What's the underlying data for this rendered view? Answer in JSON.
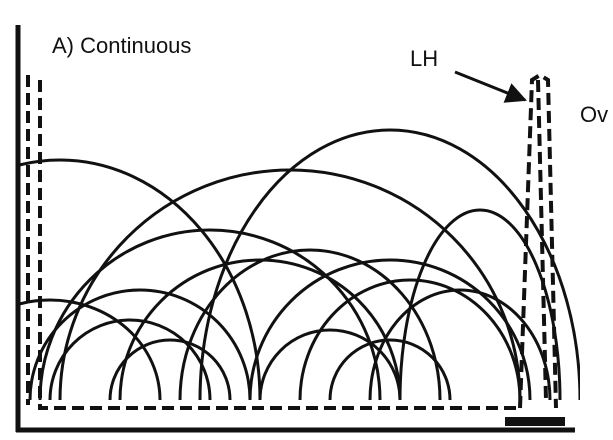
{
  "title": "A) Continuous",
  "labels": {
    "lh": "LH",
    "ov": "Ov"
  }
}
